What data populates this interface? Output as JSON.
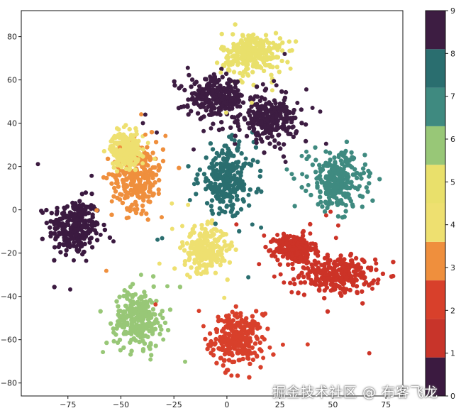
{
  "chart_data": {
    "type": "scatter",
    "title": "",
    "xlabel": "",
    "ylabel": "",
    "xlim": [
      -97,
      83
    ],
    "ylim": [
      -86,
      92
    ],
    "x_ticks": [
      -75,
      -50,
      -25,
      0,
      25,
      50,
      75
    ],
    "y_ticks": [
      -80,
      -60,
      -40,
      -20,
      0,
      20,
      40,
      60,
      80
    ],
    "grid": false,
    "legend": "none",
    "colormap": "Spectral (discrete, 10 levels)",
    "colorbar": {
      "ticks": [
        0,
        1,
        2,
        3,
        4,
        5,
        6,
        7,
        8,
        9
      ],
      "range": [
        0,
        9
      ],
      "colors": [
        "#3b1a40",
        "#c8342a",
        "#d8402b",
        "#ef8f3d",
        "#eee070",
        "#e9e06b",
        "#98c777",
        "#3f8a80",
        "#2a6e6f",
        "#3d1d42"
      ]
    },
    "clusters": [
      {
        "label": 0,
        "center": [
          -72,
          -8
        ],
        "spread": [
          11,
          12
        ],
        "color": "#3b1a40"
      },
      {
        "label": 1,
        "center": [
          5,
          -60
        ],
        "spread": [
          11,
          11
        ],
        "color": "#d8402b"
      },
      {
        "label": 2,
        "center": [
          52,
          -30
        ],
        "spread": [
          16,
          8
        ],
        "color": "#cc3327"
      },
      {
        "label": 2,
        "center": [
          32,
          -18
        ],
        "spread": [
          8,
          6
        ],
        "color": "#cc3327"
      },
      {
        "label": 3,
        "center": [
          -42,
          16
        ],
        "spread": [
          11,
          14
        ],
        "color": "#ef8f3d"
      },
      {
        "label": 4,
        "center": [
          -10,
          -18
        ],
        "spread": [
          9,
          9
        ],
        "color": "#eee070"
      },
      {
        "label": 4,
        "center": [
          -48,
          28
        ],
        "spread": [
          6,
          7
        ],
        "color": "#eee070"
      },
      {
        "label": 5,
        "center": [
          12,
          72
        ],
        "spread": [
          13,
          9
        ],
        "color": "#e9e06b"
      },
      {
        "label": 6,
        "center": [
          -42,
          -50
        ],
        "spread": [
          10,
          12
        ],
        "color": "#98c777"
      },
      {
        "label": 7,
        "center": [
          52,
          13
        ],
        "spread": [
          12,
          12
        ],
        "color": "#3f8a80"
      },
      {
        "label": 8,
        "center": [
          0,
          14
        ],
        "spread": [
          12,
          14
        ],
        "color": "#2a6e6f"
      },
      {
        "label": 9,
        "center": [
          -5,
          52
        ],
        "spread": [
          12,
          8
        ],
        "color": "#3d1d42"
      },
      {
        "label": 9,
        "center": [
          20,
          42
        ],
        "spread": [
          12,
          9
        ],
        "color": "#3d1d42"
      }
    ]
  },
  "watermark": "掘金技术社区 @ 布客飞龙"
}
